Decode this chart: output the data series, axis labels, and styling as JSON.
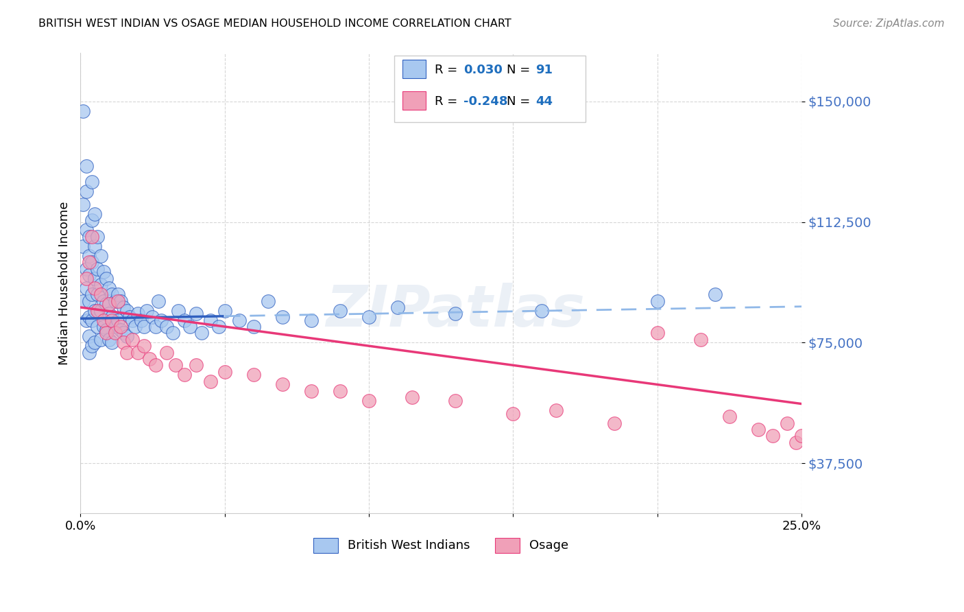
{
  "title": "BRITISH WEST INDIAN VS OSAGE MEDIAN HOUSEHOLD INCOME CORRELATION CHART",
  "source": "Source: ZipAtlas.com",
  "ylabel": "Median Household Income",
  "yticks": [
    37500,
    75000,
    112500,
    150000
  ],
  "ytick_labels": [
    "$37,500",
    "$75,000",
    "$112,500",
    "$150,000"
  ],
  "ymin": 22000,
  "ymax": 165000,
  "xmin": 0.0,
  "xmax": 0.25,
  "legend_r_blue": "0.030",
  "legend_n_blue": "91",
  "legend_r_pink": "-0.248",
  "legend_n_pink": "44",
  "legend_label_blue": "British West Indians",
  "legend_label_pink": "Osage",
  "color_blue": "#A8C8F0",
  "color_pink": "#F0A0B8",
  "line_color_blue": "#3060C0",
  "line_color_pink": "#E83878",
  "line_dashed_color": "#90B8E8",
  "ytick_color": "#4472C4",
  "watermark_text": "ZIPatlas",
  "blue_points_x": [
    0.001,
    0.001,
    0.001,
    0.001,
    0.002,
    0.002,
    0.002,
    0.002,
    0.002,
    0.002,
    0.003,
    0.003,
    0.003,
    0.003,
    0.003,
    0.003,
    0.003,
    0.004,
    0.004,
    0.004,
    0.004,
    0.004,
    0.004,
    0.005,
    0.005,
    0.005,
    0.005,
    0.005,
    0.006,
    0.006,
    0.006,
    0.006,
    0.007,
    0.007,
    0.007,
    0.007,
    0.008,
    0.008,
    0.008,
    0.009,
    0.009,
    0.009,
    0.01,
    0.01,
    0.01,
    0.011,
    0.011,
    0.011,
    0.012,
    0.012,
    0.013,
    0.013,
    0.014,
    0.014,
    0.015,
    0.015,
    0.016,
    0.016,
    0.017,
    0.018,
    0.019,
    0.02,
    0.021,
    0.022,
    0.023,
    0.025,
    0.026,
    0.027,
    0.028,
    0.03,
    0.032,
    0.034,
    0.036,
    0.038,
    0.04,
    0.042,
    0.045,
    0.048,
    0.05,
    0.055,
    0.06,
    0.065,
    0.07,
    0.08,
    0.09,
    0.1,
    0.11,
    0.13,
    0.16,
    0.2,
    0.22
  ],
  "blue_points_y": [
    147000,
    118000,
    105000,
    88000,
    130000,
    122000,
    110000,
    98000,
    92000,
    82000,
    108000,
    102000,
    96000,
    88000,
    83000,
    77000,
    72000,
    125000,
    113000,
    100000,
    90000,
    82000,
    74000,
    115000,
    105000,
    95000,
    85000,
    75000,
    108000,
    98000,
    90000,
    80000,
    102000,
    93000,
    85000,
    76000,
    97000,
    88000,
    80000,
    95000,
    87000,
    79000,
    92000,
    84000,
    76000,
    90000,
    83000,
    75000,
    88000,
    80000,
    90000,
    82000,
    88000,
    79000,
    86000,
    78000,
    85000,
    77000,
    83000,
    82000,
    80000,
    84000,
    82000,
    80000,
    85000,
    83000,
    80000,
    88000,
    82000,
    80000,
    78000,
    85000,
    82000,
    80000,
    84000,
    78000,
    82000,
    80000,
    85000,
    82000,
    80000,
    88000,
    83000,
    82000,
    85000,
    83000,
    86000,
    84000,
    85000,
    88000,
    90000
  ],
  "pink_points_x": [
    0.002,
    0.003,
    0.004,
    0.005,
    0.006,
    0.007,
    0.008,
    0.009,
    0.01,
    0.011,
    0.012,
    0.013,
    0.014,
    0.015,
    0.016,
    0.018,
    0.02,
    0.022,
    0.024,
    0.026,
    0.03,
    0.033,
    0.036,
    0.04,
    0.045,
    0.05,
    0.06,
    0.07,
    0.08,
    0.09,
    0.1,
    0.115,
    0.13,
    0.15,
    0.165,
    0.185,
    0.2,
    0.215,
    0.225,
    0.235,
    0.24,
    0.245,
    0.248,
    0.25
  ],
  "pink_points_y": [
    95000,
    100000,
    108000,
    92000,
    85000,
    90000,
    82000,
    78000,
    87000,
    82000,
    78000,
    88000,
    80000,
    75000,
    72000,
    76000,
    72000,
    74000,
    70000,
    68000,
    72000,
    68000,
    65000,
    68000,
    63000,
    66000,
    65000,
    62000,
    60000,
    60000,
    57000,
    58000,
    57000,
    53000,
    54000,
    50000,
    78000,
    76000,
    52000,
    48000,
    46000,
    50000,
    44000,
    46000
  ]
}
